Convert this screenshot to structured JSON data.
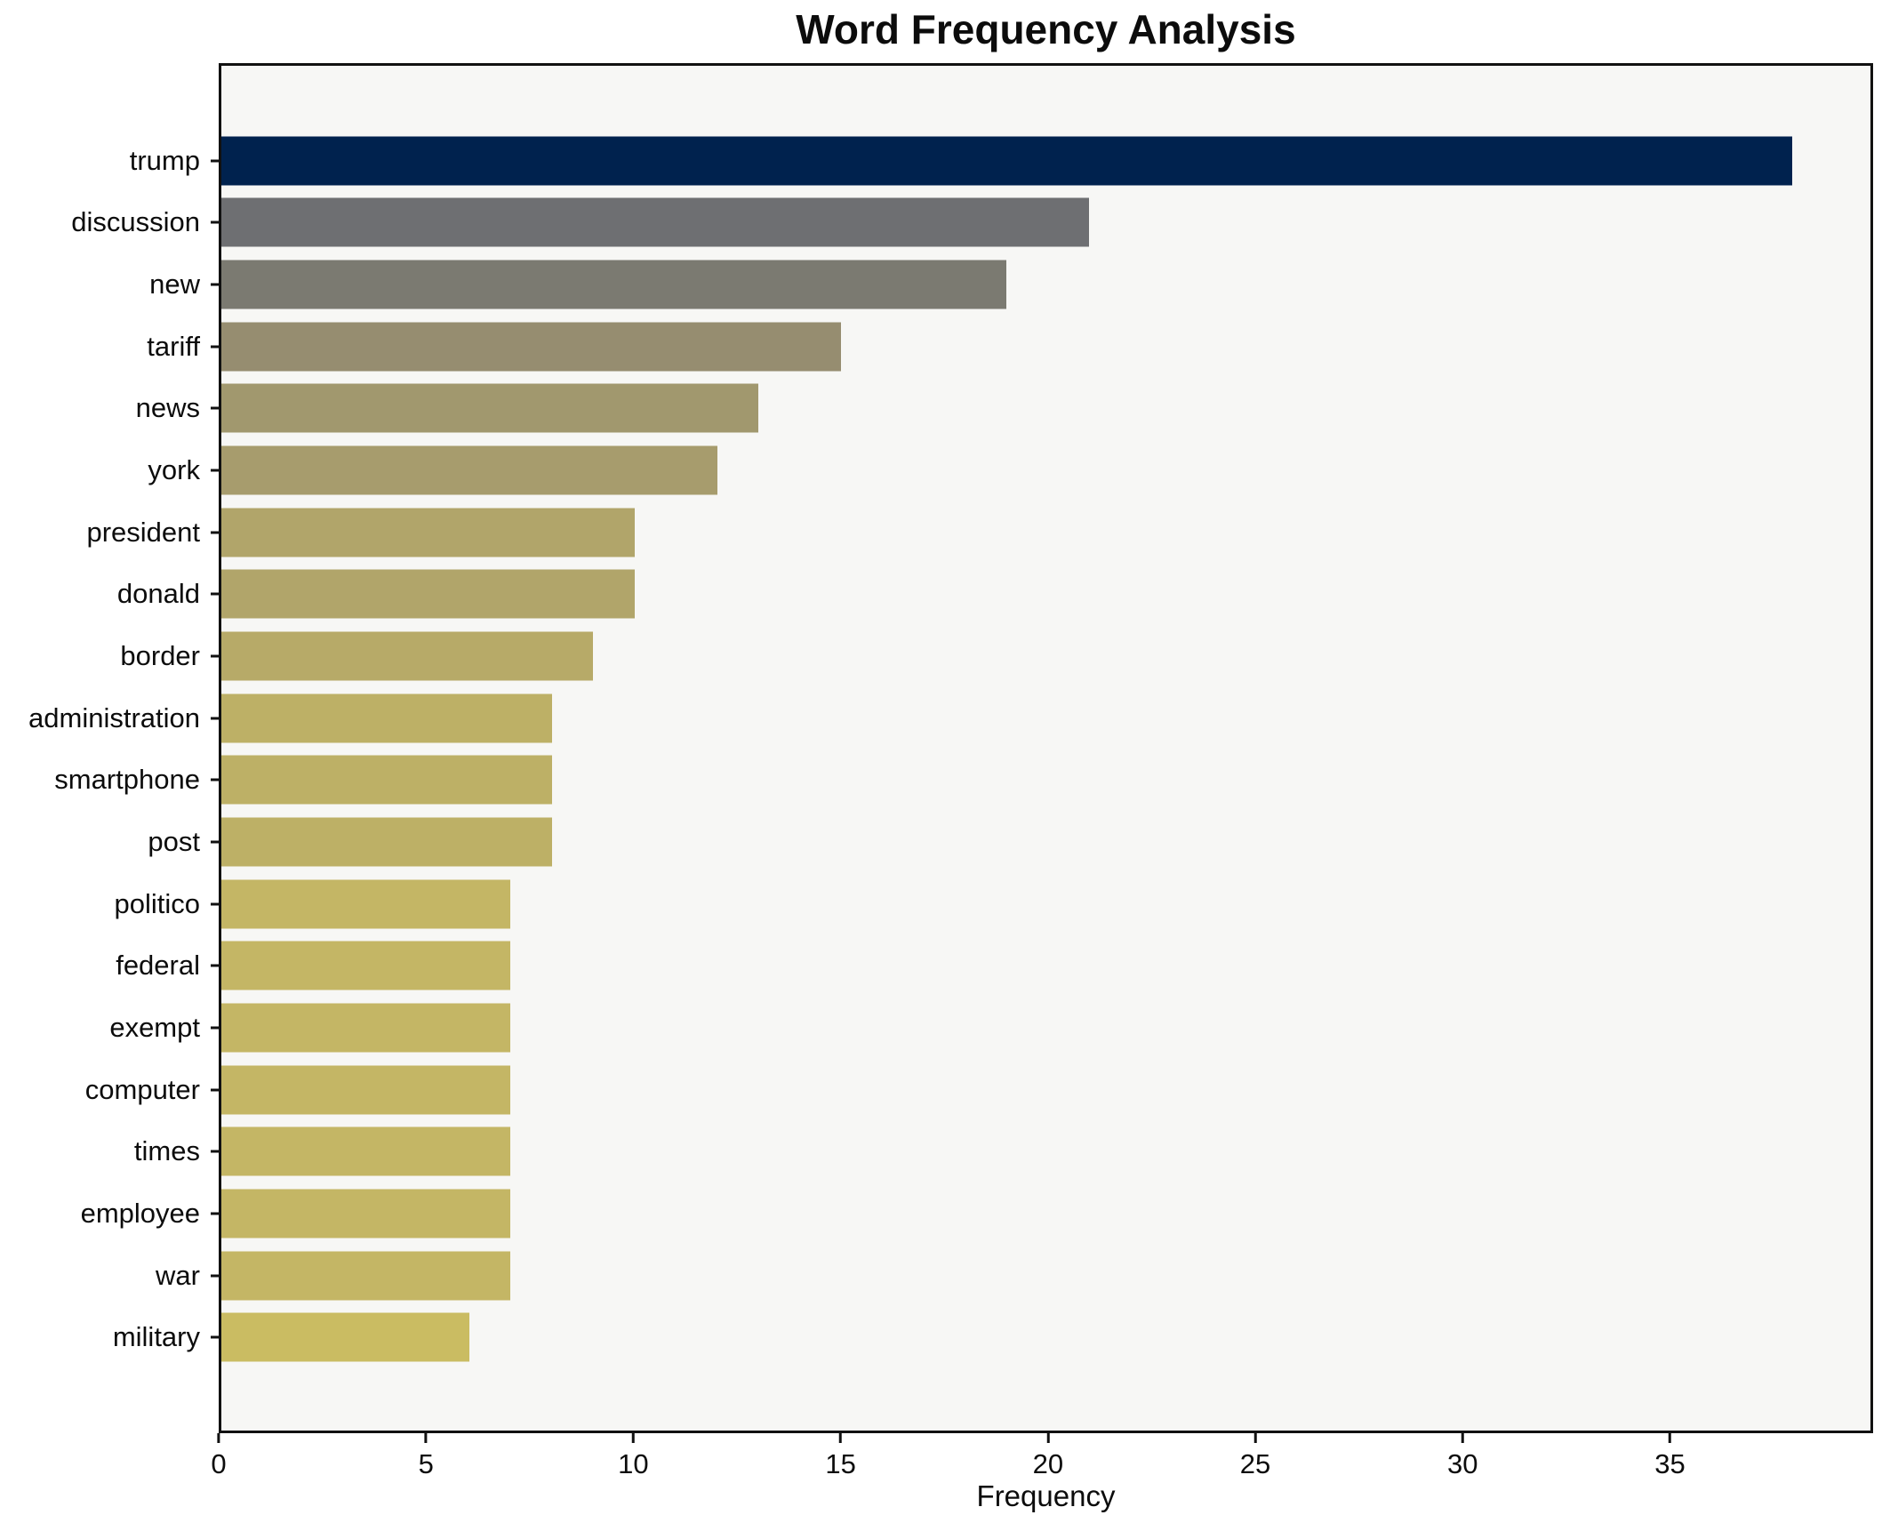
{
  "title": "Word Frequency Analysis",
  "xlabel": "Frequency",
  "colors": {
    "plot_background": "#f7f7f5",
    "figure_background": "#ffffff",
    "spine": "#111111",
    "text": "#0c0c0c"
  },
  "chart_data": {
    "type": "bar",
    "orientation": "horizontal",
    "title": "Word Frequency Analysis",
    "xlabel": "Frequency",
    "ylabel": "",
    "categories": [
      "trump",
      "discussion",
      "new",
      "tariff",
      "news",
      "york",
      "president",
      "donald",
      "border",
      "administration",
      "smartphone",
      "post",
      "politico",
      "federal",
      "exempt",
      "computer",
      "times",
      "employee",
      "war",
      "military"
    ],
    "values": [
      38,
      21,
      19,
      15,
      13,
      12,
      10,
      10,
      9,
      8,
      8,
      8,
      7,
      7,
      7,
      7,
      7,
      7,
      7,
      6
    ],
    "bar_colors": [
      "#00224e",
      "#6e6f72",
      "#7b7a71",
      "#968d70",
      "#a1986e",
      "#a79c6d",
      "#b1a56a",
      "#b1a56a",
      "#b7aa68",
      "#bdb066",
      "#bdb066",
      "#bdb066",
      "#c4b665",
      "#c4b665",
      "#c4b665",
      "#c4b665",
      "#c4b665",
      "#c4b665",
      "#c4b665",
      "#cabc62"
    ],
    "xlim": [
      0,
      39.9
    ],
    "xticks": [
      0,
      5,
      10,
      15,
      20,
      25,
      30,
      35
    ],
    "grid": false,
    "legend": false,
    "colormap": "cividis",
    "bars_descending": true
  }
}
